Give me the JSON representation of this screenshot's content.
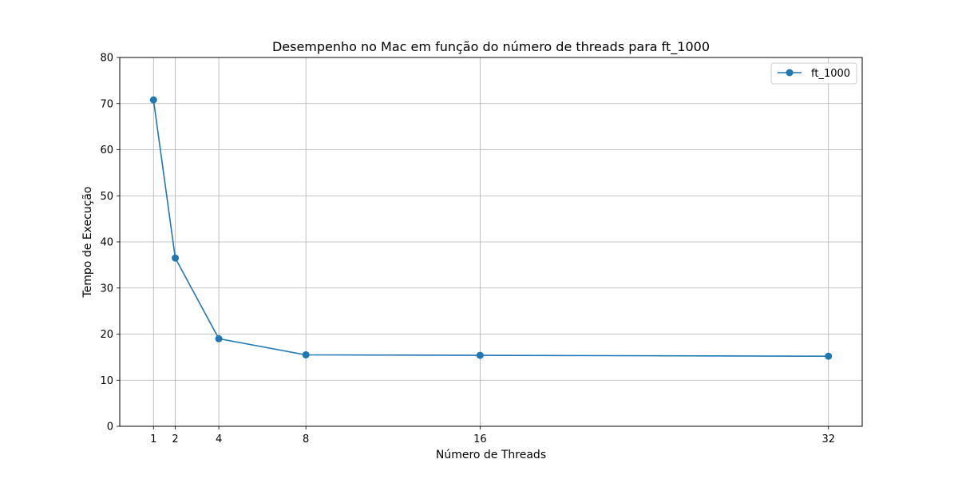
{
  "chart_data": {
    "type": "line",
    "title": "Desempenho no Mac em função do número de threads para ft_1000",
    "xlabel": "Número de Threads",
    "ylabel": "Tempo de Execução",
    "x": [
      1,
      2,
      4,
      8,
      16,
      32
    ],
    "x_tick_labels": [
      "1",
      "2",
      "4",
      "8",
      "16",
      "32"
    ],
    "y_ticks": [
      0,
      10,
      20,
      30,
      40,
      50,
      60,
      70,
      80
    ],
    "xlim": [
      -0.55,
      33.55
    ],
    "ylim": [
      0,
      80
    ],
    "grid": true,
    "legend_position": "top-right",
    "series": [
      {
        "name": "ft_1000",
        "color": "#1f77b4",
        "marker": "circle",
        "values": [
          70.8,
          36.5,
          19.0,
          15.5,
          15.4,
          15.2
        ]
      }
    ]
  }
}
